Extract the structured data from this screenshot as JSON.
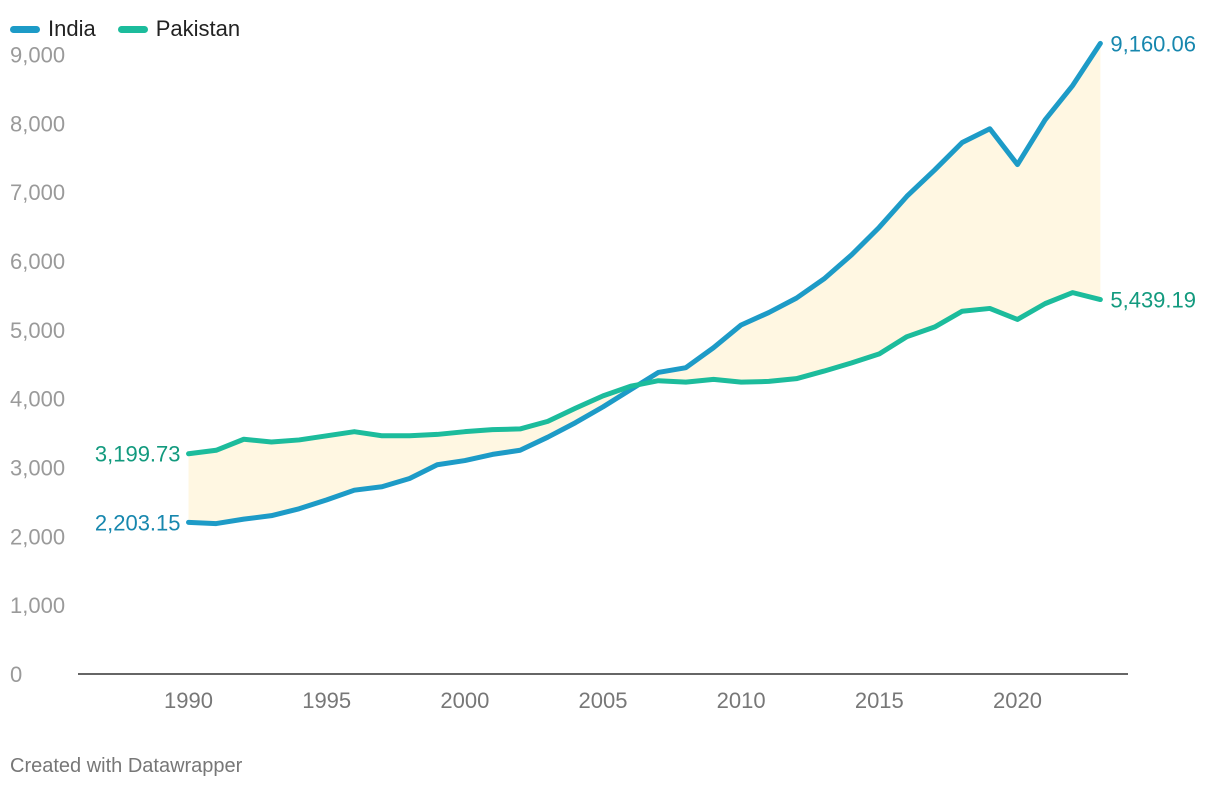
{
  "chart_data": {
    "type": "line",
    "title": "",
    "xlabel": "",
    "ylabel": "",
    "ylim": [
      0,
      9500
    ],
    "yticks": [
      0,
      1000,
      2000,
      3000,
      4000,
      5000,
      6000,
      7000,
      8000,
      9000
    ],
    "ytick_labels": [
      "0",
      "1,000",
      "2,000",
      "3,000",
      "4,000",
      "5,000",
      "6,000",
      "7,000",
      "8,000",
      "9,000"
    ],
    "xlim": [
      1986,
      2024
    ],
    "xticks": [
      1990,
      1995,
      2000,
      2005,
      2010,
      2015,
      2020
    ],
    "xtick_labels": [
      "1990",
      "1995",
      "2000",
      "2005",
      "2010",
      "2015",
      "2020"
    ],
    "x": [
      1990,
      1991,
      1992,
      1993,
      1994,
      1995,
      1996,
      1997,
      1998,
      1999,
      2000,
      2001,
      2002,
      2003,
      2004,
      2005,
      2006,
      2007,
      2008,
      2009,
      2010,
      2011,
      2012,
      2013,
      2014,
      2015,
      2016,
      2017,
      2018,
      2019,
      2020,
      2021,
      2022,
      2023
    ],
    "series": [
      {
        "name": "India",
        "color": "#1d9bc7",
        "values": [
          2203.15,
          2185,
          2250,
          2300,
          2400,
          2530,
          2670,
          2720,
          2840,
          3040,
          3100,
          3190,
          3250,
          3440,
          3650,
          3880,
          4130,
          4380,
          4450,
          4740,
          5070,
          5250,
          5460,
          5740,
          6090,
          6490,
          6940,
          7320,
          7720,
          7920,
          7400,
          8050,
          8550,
          9160.06
        ],
        "start_label": "2,203.15",
        "end_label": "9,160.06"
      },
      {
        "name": "Pakistan",
        "color": "#1cbc9c",
        "values": [
          3199.73,
          3250,
          3410,
          3370,
          3400,
          3460,
          3520,
          3460,
          3460,
          3480,
          3520,
          3550,
          3560,
          3670,
          3860,
          4040,
          4180,
          4260,
          4240,
          4280,
          4240,
          4250,
          4290,
          4400,
          4520,
          4650,
          4900,
          5040,
          5270,
          5310,
          5150,
          5380,
          5540,
          5439.19
        ],
        "start_label": "3,199.73",
        "end_label": "5,439.19"
      }
    ],
    "gap_fill_color": "#fff7e2"
  },
  "legend": {
    "items": [
      {
        "label": "India",
        "color": "#1d9bc7"
      },
      {
        "label": "Pakistan",
        "color": "#1cbc9c"
      }
    ]
  },
  "label_colors": {
    "india_text": "#1787ae",
    "pakistan_text": "#129a7e"
  },
  "footer": {
    "credit": "Created with Datawrapper"
  }
}
